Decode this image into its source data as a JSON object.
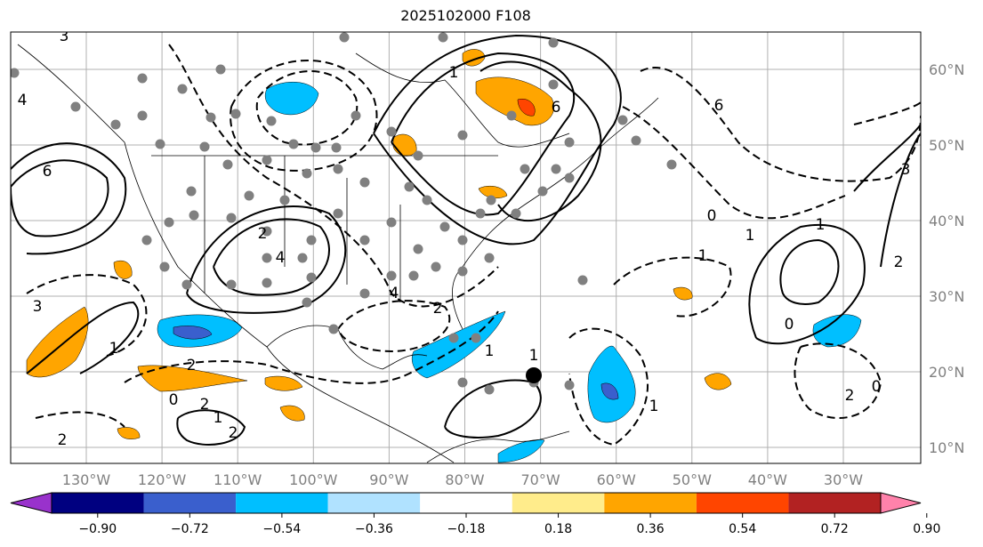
{
  "title": "2025102000 F108",
  "lat_labels": [
    "60°N",
    "50°N",
    "40°N",
    "30°N",
    "20°N",
    "10°N"
  ],
  "lon_labels": [
    "130°W",
    "120°W",
    "110°W",
    "100°W",
    "90°W",
    "80°W",
    "70°W",
    "60°W",
    "50°W",
    "40°W",
    "30°W"
  ],
  "colorbar": {
    "ticks": [
      "−0.90",
      "−0.72",
      "−0.54",
      "−0.36",
      "−0.18",
      "0.18",
      "0.36",
      "0.54",
      "0.72",
      "0.90"
    ],
    "colors": [
      "#9932cc",
      "#000080",
      "#3a5fcd",
      "#00bfff",
      "#b0e2ff",
      "#ffffff",
      "#ffec8b",
      "#ffa500",
      "#ff4500",
      "#b22222",
      "#ff82ab"
    ]
  },
  "contour_labels": [
    "3",
    "6",
    "4",
    "2",
    "4",
    "6",
    "1",
    "2",
    "4",
    "6",
    "3",
    "1",
    "0",
    "1",
    "3",
    "2",
    "1",
    "2",
    "1",
    "1",
    "0",
    "1",
    "2",
    "2",
    "2",
    "0",
    "1",
    "0",
    "1",
    "2"
  ]
}
